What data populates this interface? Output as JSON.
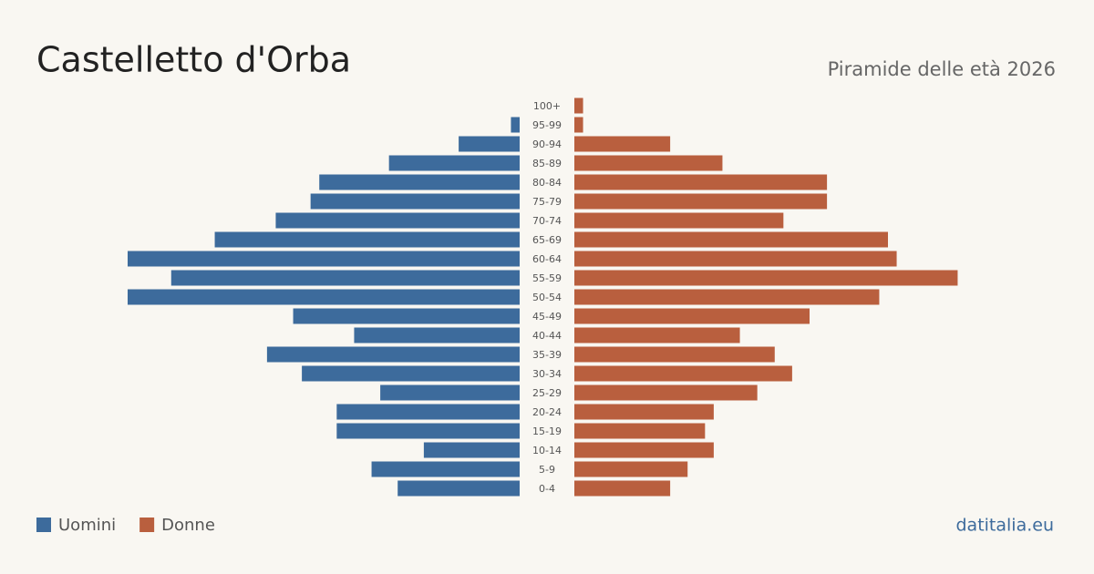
{
  "chart_data": {
    "type": "pyramid",
    "title": "Castelletto d'Orba",
    "subtitle": "Piramide delle età 2026",
    "source": "datitalia.eu",
    "categories": [
      "100+",
      "95-99",
      "90-94",
      "85-89",
      "80-84",
      "75-79",
      "70-74",
      "65-69",
      "60-64",
      "55-59",
      "50-54",
      "45-49",
      "40-44",
      "35-39",
      "30-34",
      "25-29",
      "20-24",
      "15-19",
      "10-14",
      "5-9",
      "0-4"
    ],
    "series": [
      {
        "name": "Uomini",
        "color": "#3d6b9c",
        "values": [
          0,
          1,
          7,
          15,
          23,
          24,
          28,
          35,
          45,
          40,
          45,
          26,
          19,
          29,
          25,
          16,
          21,
          21,
          11,
          17,
          14
        ]
      },
      {
        "name": "Donne",
        "color": "#b95f3e",
        "values": [
          1,
          1,
          11,
          17,
          29,
          29,
          24,
          36,
          37,
          44,
          35,
          27,
          19,
          23,
          25,
          21,
          16,
          15,
          16,
          13,
          11
        ]
      }
    ]
  }
}
